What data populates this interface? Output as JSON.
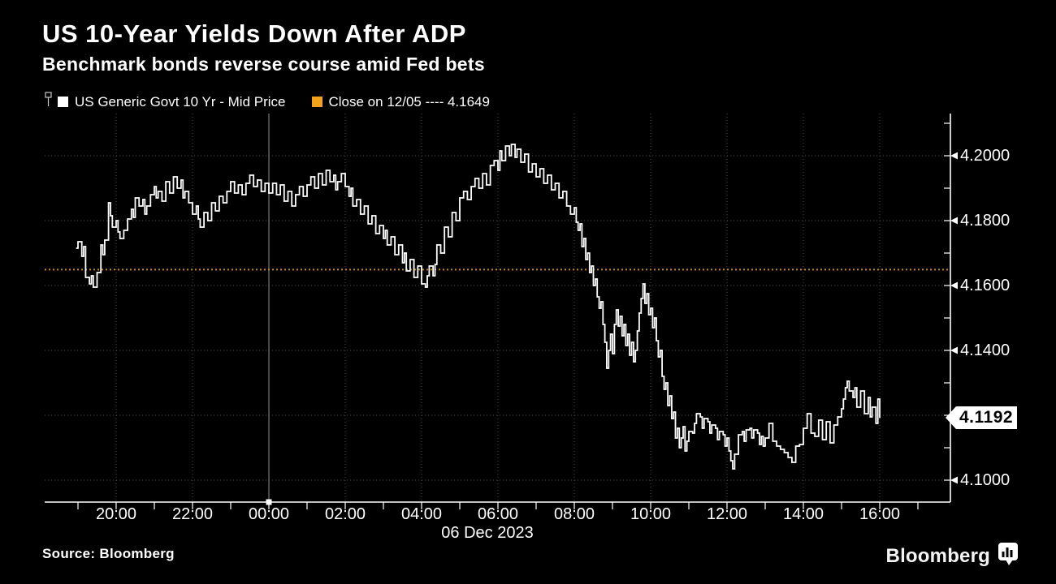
{
  "header": {
    "title": "US 10-Year Yields Down After ADP",
    "subtitle": "Benchmark bonds reverse course amid Fed bets"
  },
  "legend": {
    "series": {
      "label": "US Generic Govt 10 Yr - Mid Price",
      "swatch_color": "#FFFFFF"
    },
    "reference": {
      "label": "Close on 12/05 ---- 4.1649",
      "swatch_color": "#F5A21B"
    }
  },
  "footer": {
    "source": "Source: Bloomberg",
    "brand": "Bloomberg"
  },
  "colors": {
    "background": "#000000",
    "line": "#FFFFFF",
    "grid": "#4F4F4F",
    "day_line": "#909090",
    "axis": "#FFFFFF",
    "reference_line": "#C8861F",
    "badge_bg": "#FFFFFF",
    "badge_text": "#000000"
  },
  "chart_data": {
    "type": "line",
    "title": "US 10-Year Yields Down After ADP",
    "series_name": "US Generic Govt 10 Yr - Mid Price",
    "xlabel": "",
    "ylabel": "",
    "date_label": "06 Dec 2023",
    "x_unit": "decimal hours since 18:00 on 05 Dec 2023",
    "x_range_hours": [
      0.95,
      22.0
    ],
    "ylim": [
      4.093,
      4.213
    ],
    "grid": "dotted",
    "legend_position": "top-left",
    "day_boundary_hour": 6,
    "x_ticks": [
      {
        "h": 2,
        "label": "20:00"
      },
      {
        "h": 4,
        "label": "22:00"
      },
      {
        "h": 6,
        "label": "00:00"
      },
      {
        "h": 8,
        "label": "02:00"
      },
      {
        "h": 10,
        "label": "04:00"
      },
      {
        "h": 12,
        "label": "06:00"
      },
      {
        "h": 14,
        "label": "08:00"
      },
      {
        "h": 16,
        "label": "10:00"
      },
      {
        "h": 18,
        "label": "12:00"
      },
      {
        "h": 20,
        "label": "14:00"
      },
      {
        "h": 22,
        "label": "16:00"
      }
    ],
    "y_ticks": [
      {
        "v": 4.2,
        "label": "4.2000"
      },
      {
        "v": 4.18,
        "label": "4.1800"
      },
      {
        "v": 4.16,
        "label": "4.1600"
      },
      {
        "v": 4.14,
        "label": "4.1400"
      },
      {
        "v": 4.1,
        "label": "4.1000"
      }
    ],
    "y_gridlines": [
      4.2,
      4.18,
      4.16,
      4.14,
      4.12,
      4.1
    ],
    "reference_line": {
      "value": 4.1649,
      "label": "Close on 12/05"
    },
    "last_price": {
      "value": 4.1192,
      "label": "4.1192"
    },
    "points": [
      [
        0.95,
        4.1715
      ],
      [
        1.0,
        4.1735
      ],
      [
        1.1,
        4.169
      ],
      [
        1.15,
        4.172
      ],
      [
        1.2,
        4.1625
      ],
      [
        1.3,
        4.1605
      ],
      [
        1.35,
        4.163
      ],
      [
        1.4,
        4.1595
      ],
      [
        1.5,
        4.164
      ],
      [
        1.6,
        4.1725
      ],
      [
        1.65,
        4.1695
      ],
      [
        1.7,
        4.174
      ],
      [
        1.8,
        4.1855
      ],
      [
        1.85,
        4.1815
      ],
      [
        1.9,
        4.178
      ],
      [
        2.0,
        4.18
      ],
      [
        2.05,
        4.1765
      ],
      [
        2.1,
        4.1745
      ],
      [
        2.2,
        4.177
      ],
      [
        2.3,
        4.1805
      ],
      [
        2.4,
        4.1835
      ],
      [
        2.45,
        4.181
      ],
      [
        2.5,
        4.187
      ],
      [
        2.6,
        4.1845
      ],
      [
        2.7,
        4.1865
      ],
      [
        2.75,
        4.182
      ],
      [
        2.8,
        4.1845
      ],
      [
        2.9,
        4.188
      ],
      [
        3.0,
        4.1905
      ],
      [
        3.05,
        4.187
      ],
      [
        3.1,
        4.189
      ],
      [
        3.2,
        4.186
      ],
      [
        3.3,
        4.192
      ],
      [
        3.4,
        4.1885
      ],
      [
        3.5,
        4.1935
      ],
      [
        3.6,
        4.19
      ],
      [
        3.7,
        4.1925
      ],
      [
        3.75,
        4.187
      ],
      [
        3.8,
        4.189
      ],
      [
        3.9,
        4.1855
      ],
      [
        4.0,
        4.182
      ],
      [
        4.1,
        4.1845
      ],
      [
        4.15,
        4.1805
      ],
      [
        4.2,
        4.178
      ],
      [
        4.3,
        4.1825
      ],
      [
        4.4,
        4.18
      ],
      [
        4.5,
        4.1855
      ],
      [
        4.6,
        4.183
      ],
      [
        4.7,
        4.1875
      ],
      [
        4.8,
        4.1855
      ],
      [
        4.9,
        4.189
      ],
      [
        5.0,
        4.192
      ],
      [
        5.1,
        4.1885
      ],
      [
        5.2,
        4.191
      ],
      [
        5.3,
        4.188
      ],
      [
        5.4,
        4.1915
      ],
      [
        5.5,
        4.194
      ],
      [
        5.6,
        4.1905
      ],
      [
        5.7,
        4.1925
      ],
      [
        5.8,
        4.189
      ],
      [
        5.9,
        4.1915
      ],
      [
        6.0,
        4.1885
      ],
      [
        6.1,
        4.1915
      ],
      [
        6.2,
        4.188
      ],
      [
        6.3,
        4.191
      ],
      [
        6.4,
        4.186
      ],
      [
        6.5,
        4.189
      ],
      [
        6.6,
        4.1845
      ],
      [
        6.7,
        4.188
      ],
      [
        6.8,
        4.1905
      ],
      [
        6.9,
        4.1875
      ],
      [
        7.0,
        4.191
      ],
      [
        7.1,
        4.1935
      ],
      [
        7.2,
        4.19
      ],
      [
        7.3,
        4.1945
      ],
      [
        7.4,
        4.191
      ],
      [
        7.5,
        4.1955
      ],
      [
        7.6,
        4.192
      ],
      [
        7.7,
        4.194
      ],
      [
        7.75,
        4.1895
      ],
      [
        7.8,
        4.192
      ],
      [
        7.9,
        4.1945
      ],
      [
        8.0,
        4.1905
      ],
      [
        8.1,
        4.1875
      ],
      [
        8.15,
        4.19
      ],
      [
        8.2,
        4.1845
      ],
      [
        8.3,
        4.1865
      ],
      [
        8.4,
        4.182
      ],
      [
        8.5,
        4.1845
      ],
      [
        8.6,
        4.179
      ],
      [
        8.7,
        4.1815
      ],
      [
        8.8,
        4.176
      ],
      [
        8.9,
        4.1785
      ],
      [
        9.0,
        4.1745
      ],
      [
        9.05,
        4.177
      ],
      [
        9.1,
        4.1725
      ],
      [
        9.2,
        4.175
      ],
      [
        9.3,
        4.1695
      ],
      [
        9.4,
        4.1725
      ],
      [
        9.5,
        4.167
      ],
      [
        9.55,
        4.17
      ],
      [
        9.6,
        4.1645
      ],
      [
        9.7,
        4.168
      ],
      [
        9.8,
        4.1625
      ],
      [
        9.9,
        4.166
      ],
      [
        10.0,
        4.1605
      ],
      [
        10.1,
        4.1595
      ],
      [
        10.15,
        4.163
      ],
      [
        10.2,
        4.166
      ],
      [
        10.3,
        4.163
      ],
      [
        10.35,
        4.1665
      ],
      [
        10.4,
        4.1725
      ],
      [
        10.5,
        4.17
      ],
      [
        10.6,
        4.178
      ],
      [
        10.7,
        4.175
      ],
      [
        10.8,
        4.1825
      ],
      [
        10.9,
        4.18
      ],
      [
        11.0,
        4.187
      ],
      [
        11.1,
        4.189
      ],
      [
        11.2,
        4.1865
      ],
      [
        11.3,
        4.1905
      ],
      [
        11.4,
        4.193
      ],
      [
        11.5,
        4.19
      ],
      [
        11.6,
        4.1945
      ],
      [
        11.7,
        4.191
      ],
      [
        11.8,
        4.197
      ],
      [
        11.9,
        4.1985
      ],
      [
        12.0,
        4.1955
      ],
      [
        12.05,
        4.2015
      ],
      [
        12.1,
        4.1985
      ],
      [
        12.2,
        4.203
      ],
      [
        12.3,
        4.2
      ],
      [
        12.35,
        4.2035
      ],
      [
        12.45,
        4.1995
      ],
      [
        12.5,
        4.202
      ],
      [
        12.6,
        4.198
      ],
      [
        12.7,
        4.2005
      ],
      [
        12.8,
        4.195
      ],
      [
        12.9,
        4.1975
      ],
      [
        13.0,
        4.1935
      ],
      [
        13.1,
        4.196
      ],
      [
        13.2,
        4.1915
      ],
      [
        13.3,
        4.194
      ],
      [
        13.4,
        4.1895
      ],
      [
        13.5,
        4.1915
      ],
      [
        13.6,
        4.187
      ],
      [
        13.7,
        4.189
      ],
      [
        13.8,
        4.1845
      ],
      [
        13.9,
        4.182
      ],
      [
        14.0,
        4.184
      ],
      [
        14.05,
        4.1795
      ],
      [
        14.1,
        4.177
      ],
      [
        14.15,
        4.179
      ],
      [
        14.2,
        4.172
      ],
      [
        14.25,
        4.1745
      ],
      [
        14.3,
        4.168
      ],
      [
        14.35,
        4.17
      ],
      [
        14.4,
        4.164
      ],
      [
        14.45,
        4.166
      ],
      [
        14.5,
        4.16
      ],
      [
        14.55,
        4.162
      ],
      [
        14.6,
        4.1565
      ],
      [
        14.65,
        4.153
      ],
      [
        14.7,
        4.155
      ],
      [
        14.75,
        4.148
      ],
      [
        14.8,
        4.1425
      ],
      [
        14.85,
        4.1345
      ],
      [
        14.9,
        4.14
      ],
      [
        14.95,
        4.145
      ],
      [
        15.0,
        4.139
      ],
      [
        15.05,
        4.148
      ],
      [
        15.1,
        4.1525
      ],
      [
        15.15,
        4.1475
      ],
      [
        15.2,
        4.1505
      ],
      [
        15.25,
        4.1445
      ],
      [
        15.3,
        4.148
      ],
      [
        15.35,
        4.1415
      ],
      [
        15.4,
        4.145
      ],
      [
        15.45,
        4.1385
      ],
      [
        15.5,
        4.1425
      ],
      [
        15.55,
        4.1365
      ],
      [
        15.6,
        4.14
      ],
      [
        15.65,
        4.146
      ],
      [
        15.7,
        4.1515
      ],
      [
        15.75,
        4.156
      ],
      [
        15.8,
        4.1605
      ],
      [
        15.85,
        4.1545
      ],
      [
        15.9,
        4.1575
      ],
      [
        15.95,
        4.151
      ],
      [
        16.0,
        4.153
      ],
      [
        16.05,
        4.147
      ],
      [
        16.1,
        4.15
      ],
      [
        16.15,
        4.143
      ],
      [
        16.2,
        4.138
      ],
      [
        16.25,
        4.14
      ],
      [
        16.3,
        4.132
      ],
      [
        16.35,
        4.128
      ],
      [
        16.4,
        4.13
      ],
      [
        16.45,
        4.123
      ],
      [
        16.5,
        4.126
      ],
      [
        16.55,
        4.119
      ],
      [
        16.6,
        4.121
      ],
      [
        16.65,
        4.113
      ],
      [
        16.7,
        4.116
      ],
      [
        16.75,
        4.11
      ],
      [
        16.8,
        4.113
      ],
      [
        16.85,
        4.1165
      ],
      [
        16.9,
        4.109
      ],
      [
        16.95,
        4.112
      ],
      [
        17.0,
        4.115
      ],
      [
        17.1,
        4.1145
      ],
      [
        17.15,
        4.1175
      ],
      [
        17.2,
        4.1205
      ],
      [
        17.3,
        4.1195
      ],
      [
        17.35,
        4.116
      ],
      [
        17.4,
        4.119
      ],
      [
        17.5,
        4.118
      ],
      [
        17.55,
        4.1145
      ],
      [
        17.6,
        4.117
      ],
      [
        17.7,
        4.116
      ],
      [
        17.75,
        4.1125
      ],
      [
        17.8,
        4.115
      ],
      [
        17.9,
        4.114
      ],
      [
        17.95,
        4.1105
      ],
      [
        18.0,
        4.113
      ],
      [
        18.05,
        4.109
      ],
      [
        18.1,
        4.106
      ],
      [
        18.15,
        4.1035
      ],
      [
        18.2,
        4.108
      ],
      [
        18.3,
        4.114
      ],
      [
        18.4,
        4.115
      ],
      [
        18.45,
        4.112
      ],
      [
        18.5,
        4.1155
      ],
      [
        18.6,
        4.116
      ],
      [
        18.65,
        4.113
      ],
      [
        18.7,
        4.1155
      ],
      [
        18.8,
        4.1145
      ],
      [
        18.85,
        4.111
      ],
      [
        18.9,
        4.1135
      ],
      [
        18.95,
        4.1105
      ],
      [
        19.0,
        4.113
      ],
      [
        19.1,
        4.1175
      ],
      [
        19.2,
        4.112
      ],
      [
        19.3,
        4.1105
      ],
      [
        19.4,
        4.1095
      ],
      [
        19.5,
        4.1085
      ],
      [
        19.6,
        4.107
      ],
      [
        19.7,
        4.1055
      ],
      [
        19.8,
        4.1105
      ],
      [
        19.9,
        4.111
      ],
      [
        20.0,
        4.116
      ],
      [
        20.1,
        4.1205
      ],
      [
        20.2,
        4.1145
      ],
      [
        20.3,
        4.1135
      ],
      [
        20.4,
        4.1185
      ],
      [
        20.5,
        4.1125
      ],
      [
        20.6,
        4.118
      ],
      [
        20.7,
        4.1115
      ],
      [
        20.8,
        4.117
      ],
      [
        20.9,
        4.1195
      ],
      [
        21.0,
        4.122
      ],
      [
        21.05,
        4.125
      ],
      [
        21.1,
        4.1285
      ],
      [
        21.15,
        4.1305
      ],
      [
        21.2,
        4.1275
      ],
      [
        21.3,
        4.1255
      ],
      [
        21.35,
        4.1285
      ],
      [
        21.4,
        4.1225
      ],
      [
        21.5,
        4.1275
      ],
      [
        21.6,
        4.1205
      ],
      [
        21.7,
        4.1255
      ],
      [
        21.75,
        4.1195
      ],
      [
        21.8,
        4.1225
      ],
      [
        21.9,
        4.1175
      ],
      [
        21.95,
        4.125
      ],
      [
        22.0,
        4.1192
      ]
    ]
  }
}
